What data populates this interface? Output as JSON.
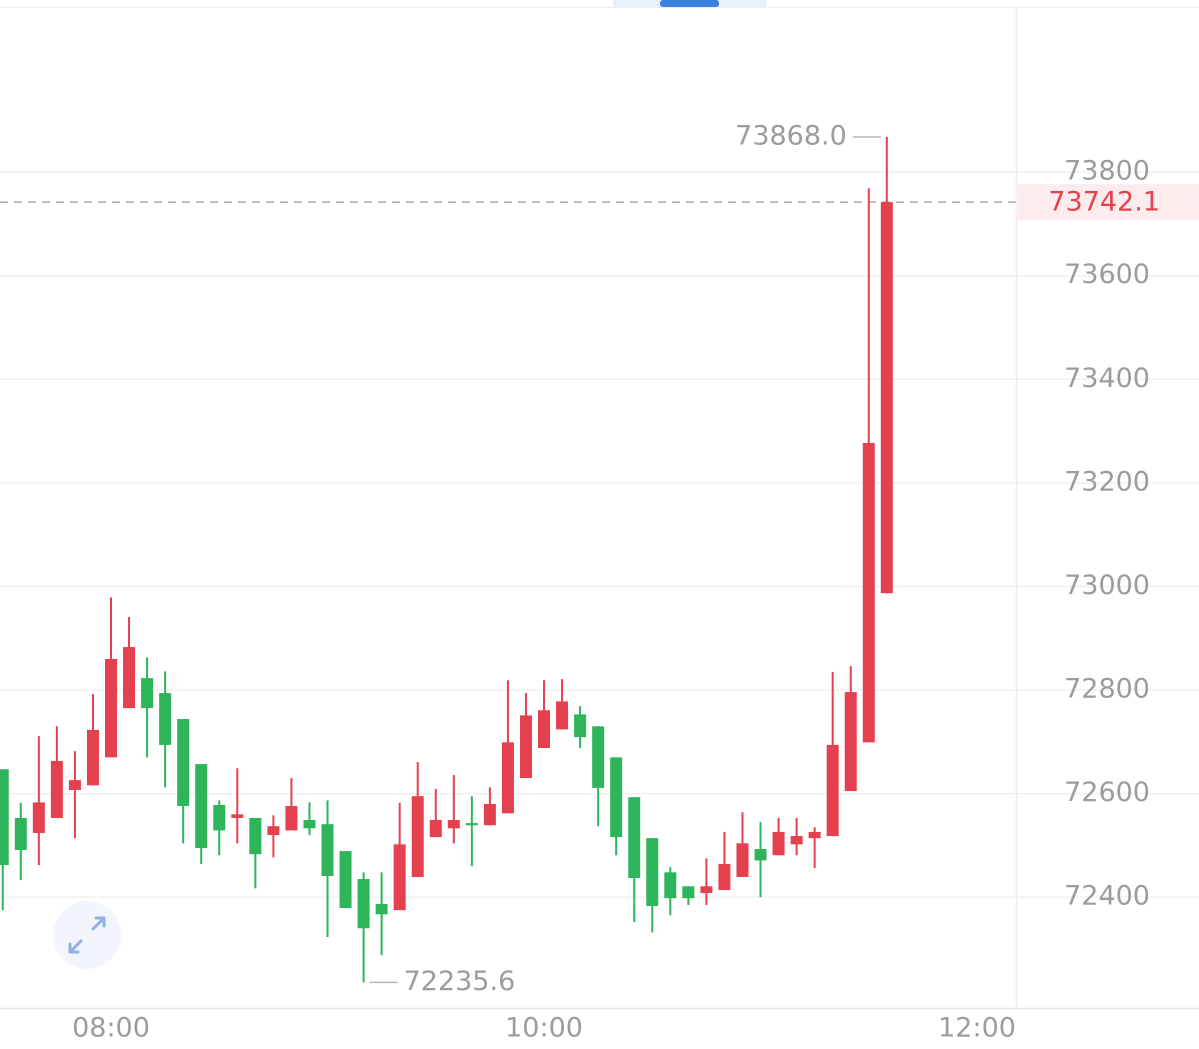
{
  "chart_data": {
    "type": "candlestick",
    "x": [
      7.5,
      7.5833,
      7.6667,
      7.75,
      7.8333,
      7.9167,
      8,
      8.0833,
      8.1667,
      8.25,
      8.3333,
      8.4167,
      8.5,
      8.5833,
      8.6667,
      8.75,
      8.8333,
      8.9167,
      9,
      9.0833,
      9.1667,
      9.25,
      9.3333,
      9.4167,
      9.5,
      9.5833,
      9.6667,
      9.75,
      9.8333,
      9.9167,
      10,
      10.0833,
      10.1667,
      10.25,
      10.3333,
      10.4167,
      10.5,
      10.5833,
      10.6667,
      10.75,
      10.8333,
      10.9167,
      11,
      11.0833,
      11.1667,
      11.25,
      11.3333,
      11.4167,
      11.5,
      11.5833
    ],
    "open": [
      72647,
      72553,
      72524,
      72553,
      72607,
      72616,
      72670,
      72765,
      72823,
      72794,
      72744,
      72657,
      72578,
      72553,
      72553,
      72520,
      72529,
      72549,
      72541,
      72489,
      72435,
      72387,
      72375,
      72439,
      72516,
      72533,
      72543,
      72539,
      72562,
      72630,
      72688,
      72724,
      72753,
      72730,
      72670,
      72593,
      72514,
      72448,
      72421,
      72408,
      72414,
      72439,
      72493,
      72481,
      72502,
      72514,
      72518,
      72605,
      72699,
      72987
    ],
    "high": [
      72647,
      72582,
      72711,
      72730,
      72682,
      72792,
      72979,
      72941,
      72863,
      72836,
      72744,
      72657,
      72587,
      72649,
      72553,
      72558,
      72630,
      72583,
      72587,
      72489,
      72448,
      72448,
      72582,
      72661,
      72609,
      72636,
      72595,
      72612,
      72819,
      72794,
      72819,
      72821,
      72769,
      72730,
      72670,
      72593,
      72514,
      72458,
      72421,
      72475,
      72526,
      72564,
      72545,
      72553,
      72553,
      72535,
      72835,
      72846,
      73769,
      73868.0
    ],
    "low": [
      72375,
      72433,
      72462,
      72553,
      72514,
      72616,
      72670,
      72765,
      72670,
      72612,
      72504,
      72464,
      72481,
      72504,
      72417,
      72477,
      72529,
      72520,
      72323,
      72379,
      72235.6,
      72288,
      72375,
      72439,
      72516,
      72504,
      72460,
      72539,
      72562,
      72630,
      72688,
      72724,
      72688,
      72537,
      72481,
      72352,
      72332,
      72365,
      72385,
      72385,
      72414,
      72439,
      72400,
      72481,
      72481,
      72456,
      72518,
      72605,
      72699,
      72987
    ],
    "close": [
      72462,
      72491,
      72583,
      72663,
      72626,
      72723,
      72860,
      72883,
      72765,
      72694,
      72576,
      72495,
      72529,
      72560,
      72483,
      72537,
      72576,
      72533,
      72441,
      72379,
      72340,
      72367,
      72502,
      72595,
      72549,
      72549,
      72539,
      72580,
      72699,
      72751,
      72761,
      72778,
      72709,
      72611,
      72516,
      72437,
      72383,
      72398,
      72398,
      72421,
      72464,
      72504,
      72471,
      72526,
      72518,
      72526,
      72694,
      72796,
      73277,
      73742.1
    ],
    "up_color": "#e4404d",
    "down_color": "#2eb55c",
    "xlim": [
      7.4873,
      12.18
    ],
    "xticks": [
      {
        "value": 8,
        "label": "08:00"
      },
      {
        "value": 10,
        "label": "10:00"
      },
      {
        "value": 12,
        "label": "12:00"
      }
    ],
    "ylim": [
      72186,
      74117
    ],
    "yticks": [
      72400,
      72600,
      72800,
      73000,
      73200,
      73400,
      73600,
      73800
    ],
    "grid": true,
    "last_price": 73742.1,
    "annotations": [
      {
        "x": 11.5833,
        "value": 73868.0,
        "label": "73868.0"
      },
      {
        "x": 9.1667,
        "value": 72235.6,
        "label": "72235.6"
      }
    ]
  }
}
